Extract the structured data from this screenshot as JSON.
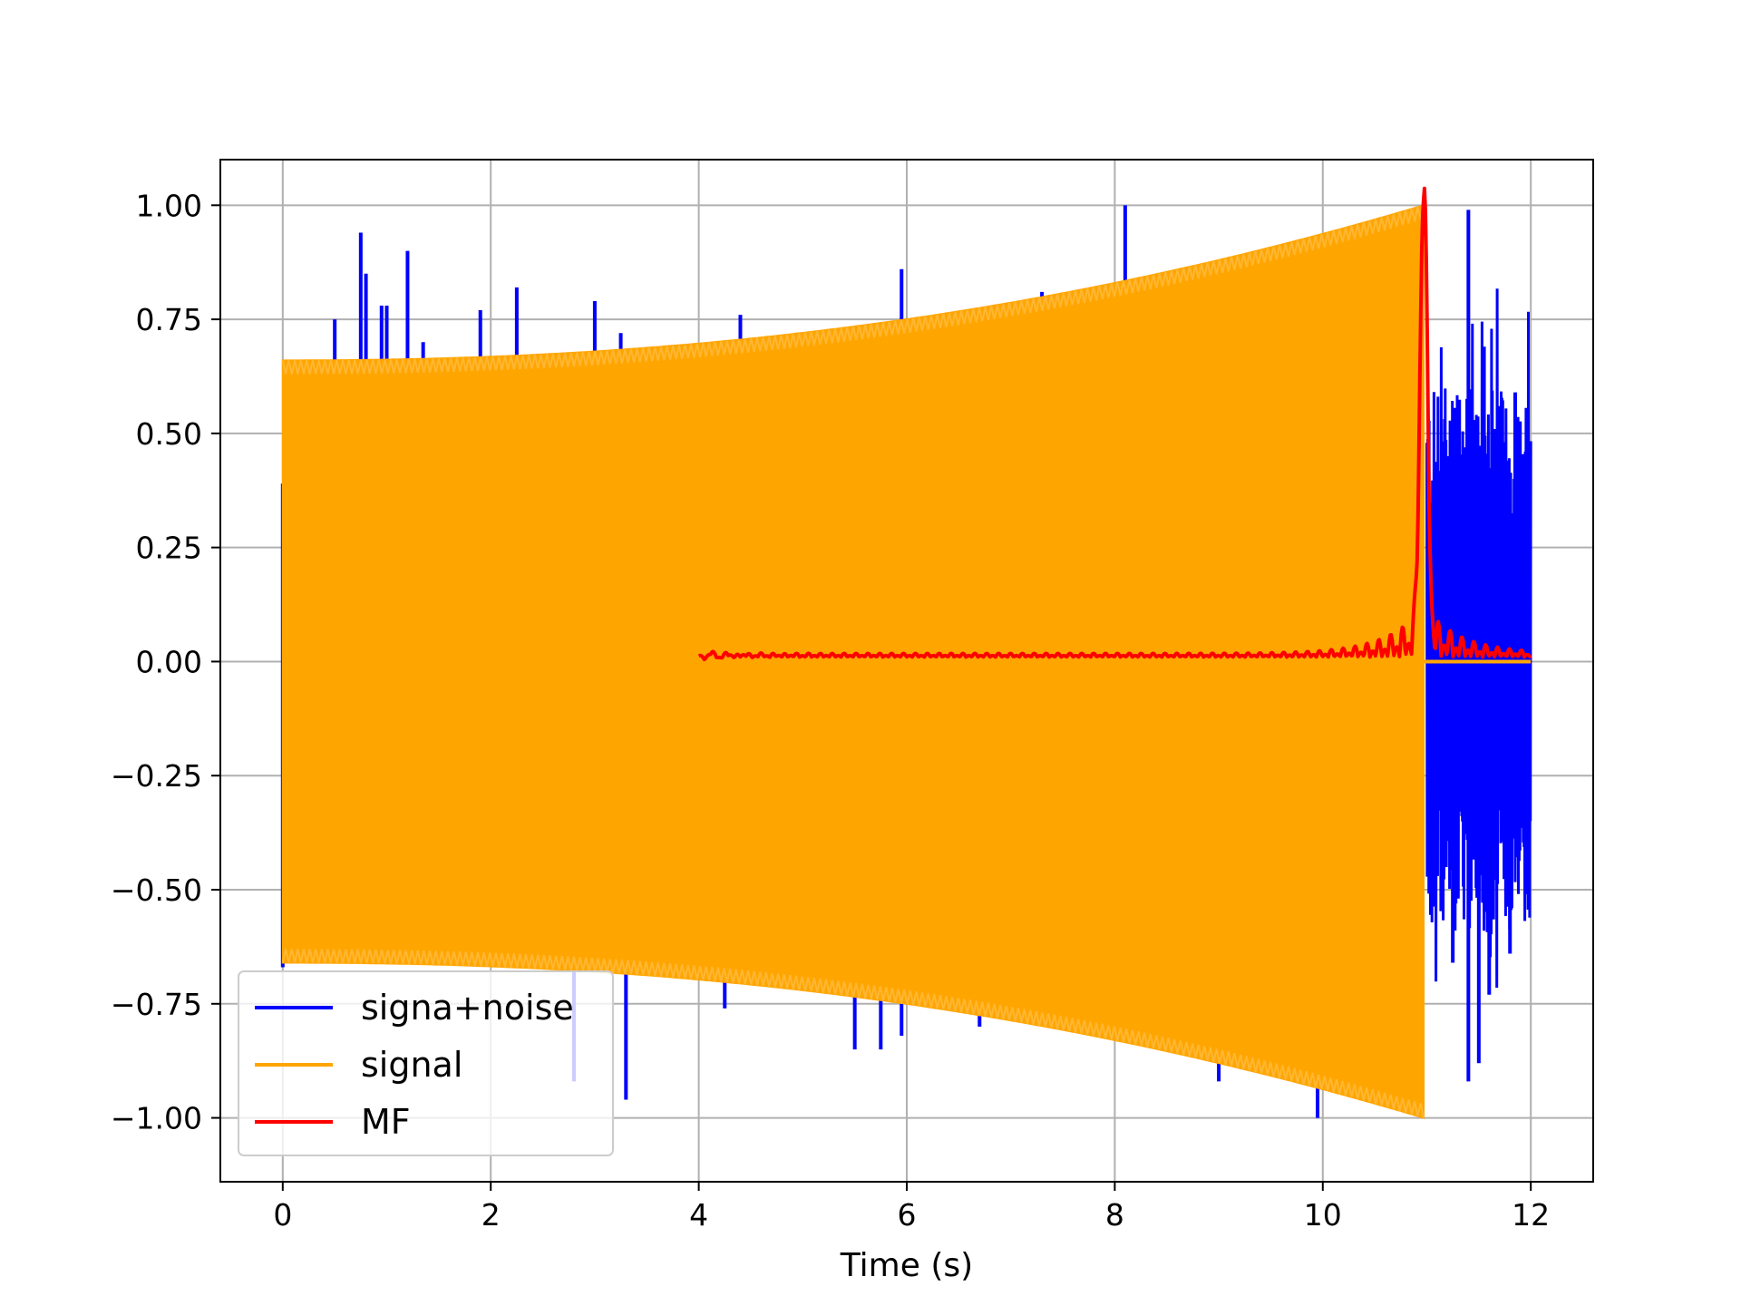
{
  "chart_data": {
    "type": "line",
    "title": "",
    "xlabel": "Time (s)",
    "ylabel": "",
    "xlim": [
      -0.6,
      12.6
    ],
    "ylim": [
      -1.14,
      1.1
    ],
    "grid": true,
    "legend_placement": "lower-left",
    "x_ticks": [
      0,
      2,
      4,
      6,
      8,
      10,
      12
    ],
    "x_tick_labels": [
      "0",
      "2",
      "4",
      "6",
      "8",
      "10",
      "12"
    ],
    "y_ticks": [
      1.0,
      0.75,
      0.5,
      0.25,
      0.0,
      -0.25,
      -0.5,
      -0.75,
      -1.0
    ],
    "y_tick_labels": [
      "1.00",
      "0.75",
      "0.50",
      "0.25",
      "0.00",
      "−0.25",
      "−0.50",
      "−0.75",
      "−1.00"
    ],
    "series": [
      {
        "name": "signa+noise",
        "color": "#0000ff",
        "spikes": [
          [
            0.0,
            0.39
          ],
          [
            0.0,
            -0.67
          ],
          [
            0.5,
            0.75
          ],
          [
            0.75,
            0.94
          ],
          [
            0.8,
            0.85
          ],
          [
            0.95,
            0.78
          ],
          [
            1.0,
            0.78
          ],
          [
            1.1,
            0.66
          ],
          [
            1.2,
            0.9
          ],
          [
            1.35,
            0.7
          ],
          [
            1.9,
            0.77
          ],
          [
            2.25,
            0.82
          ],
          [
            2.8,
            -0.92
          ],
          [
            3.0,
            0.79
          ],
          [
            3.3,
            -0.96
          ],
          [
            3.25,
            0.72
          ],
          [
            4.25,
            -0.76
          ],
          [
            4.4,
            0.76
          ],
          [
            5.5,
            -0.85
          ],
          [
            5.75,
            -0.85
          ],
          [
            5.95,
            0.86
          ],
          [
            5.95,
            -0.82
          ],
          [
            6.7,
            -0.8
          ],
          [
            7.3,
            0.81
          ],
          [
            8.1,
            1.0
          ],
          [
            9.0,
            -0.92
          ],
          [
            9.95,
            -1.0
          ]
        ],
        "noise_band": {
          "x_start": 11.0,
          "x_end": 12.0,
          "min": -0.96,
          "max": 0.99
        }
      },
      {
        "name": "signal",
        "color": "#ffa500",
        "x_start": 0.0,
        "x_end": 10.97,
        "envelope_start": 0.66,
        "envelope_end": 1.0,
        "after_value": 0.0,
        "after_x_end": 12.0
      },
      {
        "name": "MF",
        "color": "#ff0000",
        "x_start": 4.0,
        "x_end": 12.0,
        "baseline": 0.01,
        "peak_x": 10.97,
        "peak_y": 1.0
      }
    ]
  }
}
